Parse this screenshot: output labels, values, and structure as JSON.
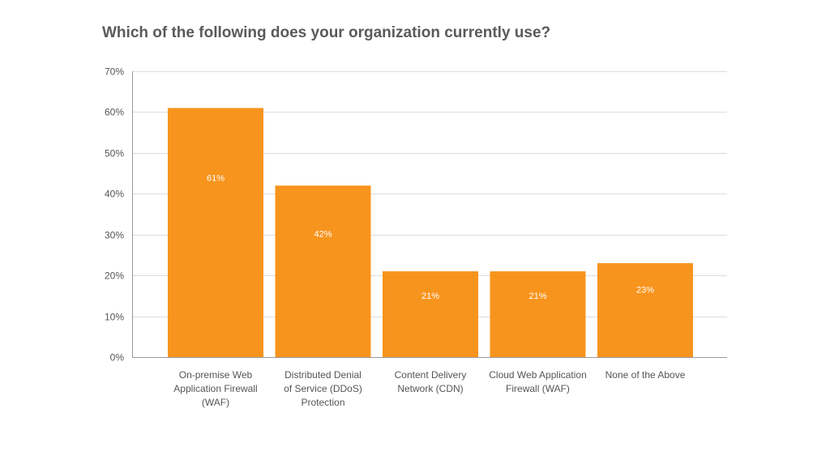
{
  "chart_data": {
    "type": "bar",
    "title": "Which of the following does your organization currently use?",
    "categories": [
      [
        "On-premise Web",
        "Application Firewall",
        "(WAF)"
      ],
      [
        "Distributed Denial",
        "of Service (DDoS)",
        "Protection"
      ],
      [
        "Content Delivery",
        "Network (CDN)"
      ],
      [
        "Cloud Web Application",
        "Firewall (WAF)"
      ],
      [
        "None of the Above"
      ]
    ],
    "values": [
      61,
      42,
      21,
      21,
      23
    ],
    "data_labels": [
      "61%",
      "42%",
      "21%",
      "21%",
      "23%"
    ],
    "xlabel": "",
    "ylabel": "",
    "ylim": [
      0,
      70
    ],
    "yticks": [
      0,
      10,
      20,
      30,
      40,
      50,
      60,
      70
    ],
    "ytick_labels": [
      "0%",
      "10%",
      "20%",
      "30%",
      "40%",
      "50%",
      "60%",
      "70%"
    ],
    "grid": true,
    "legend": "none",
    "bar_color": "#f7941d",
    "grid_color": "#dcdcdc",
    "axis_color": "#999999"
  }
}
